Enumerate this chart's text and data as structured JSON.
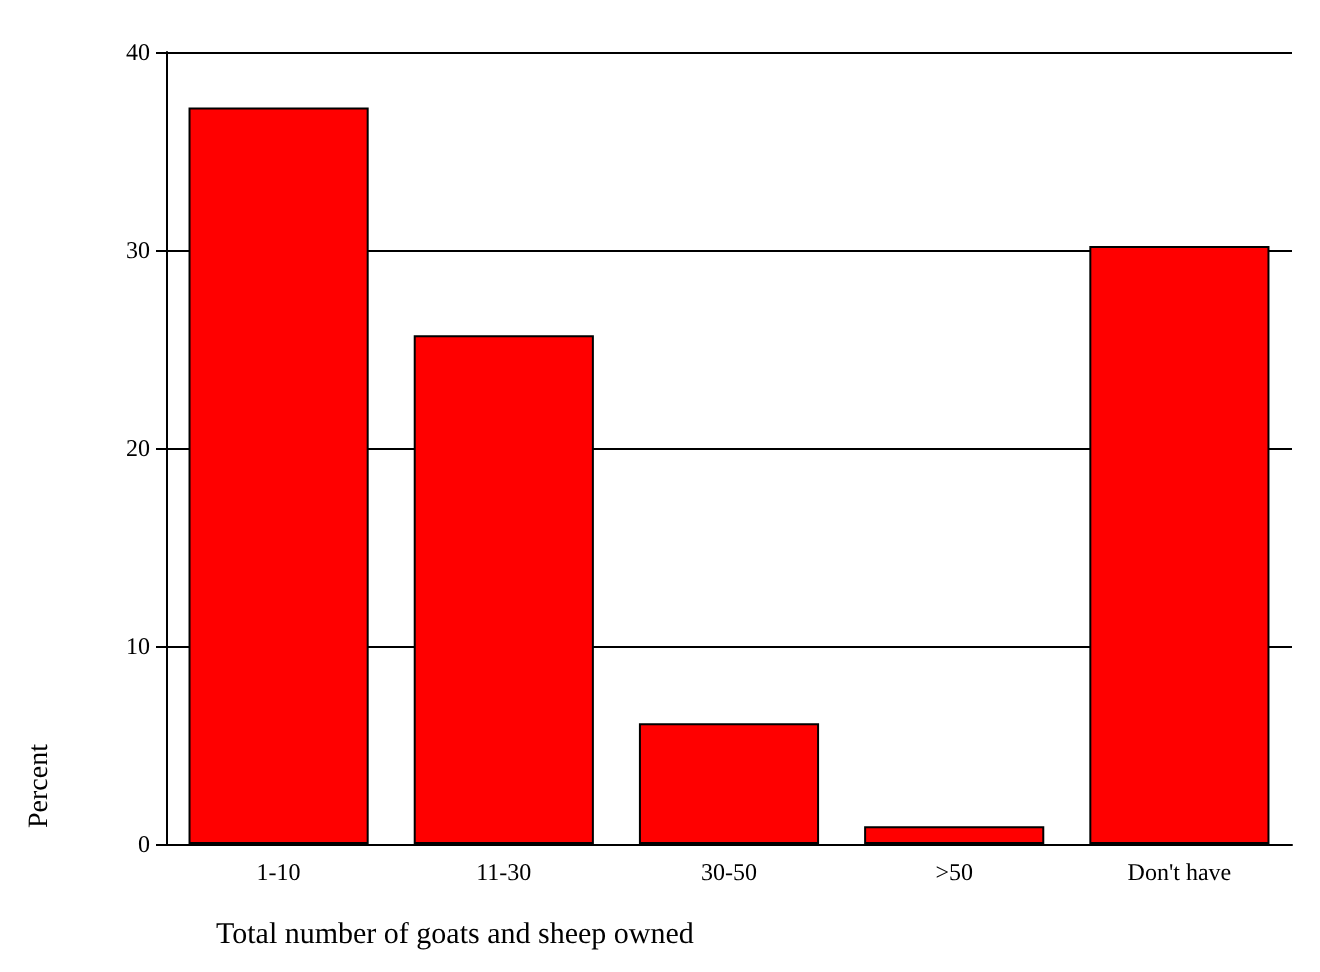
{
  "chart_data": {
    "type": "bar",
    "xlabel": "Total number of goats and sheep owned",
    "ylabel": "Percent",
    "categories": [
      "1-10",
      "11-30",
      "30-50",
      ">50",
      "Don't have"
    ],
    "values": [
      37.2,
      25.7,
      6.1,
      0.9,
      30.2
    ],
    "color": "#ff0000",
    "ylim": [
      0,
      40
    ],
    "yticks": [
      0,
      10,
      20,
      30,
      40
    ],
    "grid": "y"
  }
}
